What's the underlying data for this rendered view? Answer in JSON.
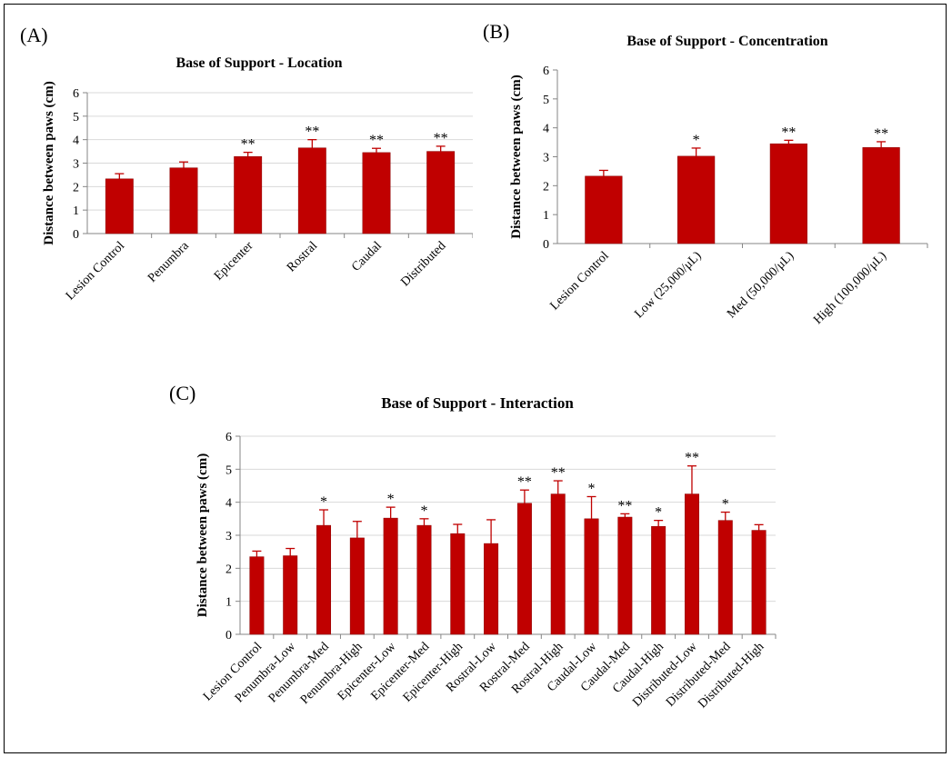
{
  "colors": {
    "bar": "#C00000",
    "bar_edge": "#8B0000",
    "error": "#C00000",
    "axis": "#868686",
    "grid": "#d9d9d9"
  },
  "panels": [
    {
      "label": "(A)"
    },
    {
      "label": "(B)"
    },
    {
      "label": "(C)"
    }
  ],
  "chart_data": [
    {
      "type": "bar",
      "title": "Base of Support - Location",
      "ylabel": "Distance between paws (cm)",
      "xlabel": "",
      "ylim": [
        0,
        6
      ],
      "yticks": [
        0,
        1,
        2,
        3,
        4,
        5,
        6
      ],
      "grid": true,
      "categories": [
        "Lesion Control",
        "Penumbra",
        "Epicenter",
        "Rostral",
        "Caudal",
        "Distributed"
      ],
      "values": [
        2.33,
        2.8,
        3.28,
        3.65,
        3.45,
        3.5
      ],
      "errors": [
        0.22,
        0.25,
        0.18,
        0.35,
        0.18,
        0.22
      ],
      "annotations": [
        "",
        "",
        "**",
        "**",
        "**",
        "**"
      ]
    },
    {
      "type": "bar",
      "title": "Base of Support - Concentration",
      "ylabel": "Distance between paws (cm)",
      "xlabel": "",
      "ylim": [
        0,
        6
      ],
      "yticks": [
        0,
        1,
        2,
        3,
        4,
        5,
        6
      ],
      "grid": false,
      "categories": [
        "Lesion Control",
        "Low (25,000/μL)",
        "Med (50,000/μL)",
        "High (100,000/μL)"
      ],
      "values": [
        2.33,
        3.02,
        3.45,
        3.32
      ],
      "errors": [
        0.2,
        0.28,
        0.12,
        0.2
      ],
      "annotations": [
        "",
        "*",
        "**",
        "**"
      ]
    },
    {
      "type": "bar",
      "title": "Base of Support - Interaction",
      "ylabel": "Distance between paws (cm)",
      "xlabel": "",
      "ylim": [
        0,
        6
      ],
      "yticks": [
        0,
        1,
        2,
        3,
        4,
        5,
        6
      ],
      "grid": true,
      "categories": [
        "Lesion Control",
        "Penumbra-Low",
        "Penumbra-Med",
        "Penumbra-High",
        "Epicenter-Low",
        "Epicenter-Med",
        "Epicenter-High",
        "Rostral-Low",
        "Rostral-Med",
        "Rostral-High",
        "Caudal-Low",
        "Caudal-Med",
        "Caudal-High",
        "Distributed-Low",
        "Distributed-Med",
        "Distributed-High"
      ],
      "values": [
        2.35,
        2.38,
        3.3,
        2.92,
        3.52,
        3.3,
        3.05,
        2.75,
        3.97,
        4.25,
        3.5,
        3.55,
        3.27,
        4.25,
        3.45,
        3.15
      ],
      "errors": [
        0.17,
        0.22,
        0.47,
        0.5,
        0.33,
        0.2,
        0.28,
        0.72,
        0.4,
        0.4,
        0.67,
        0.1,
        0.18,
        0.85,
        0.25,
        0.17
      ],
      "annotations": [
        "",
        "",
        "*",
        "",
        "*",
        "*",
        "",
        "",
        "**",
        "**",
        "*",
        "**",
        "*",
        "**",
        "*",
        ""
      ]
    }
  ]
}
